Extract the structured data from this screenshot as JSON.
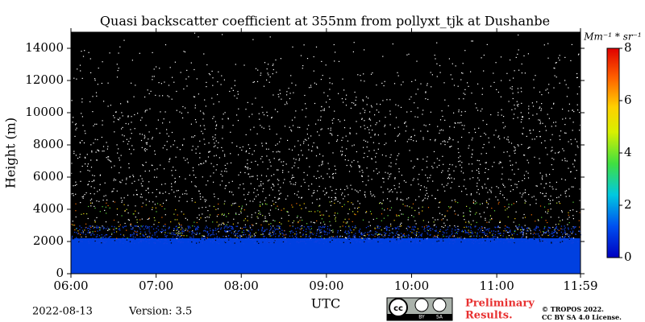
{
  "chart_data": {
    "type": "heatmap",
    "title": "Quasi backscatter coefficient at 355nm from pollyxt_tjk at Dushanbe",
    "xlabel": "UTC",
    "ylabel": "Height (m)",
    "xlim": [
      6,
      11.9833
    ],
    "xticks": [
      {
        "value": 6,
        "label": "06:00"
      },
      {
        "value": 7,
        "label": "07:00"
      },
      {
        "value": 8,
        "label": "08:00"
      },
      {
        "value": 9,
        "label": "09:00"
      },
      {
        "value": 10,
        "label": "10:00"
      },
      {
        "value": 11,
        "label": "11:00"
      },
      {
        "value": 11.9833,
        "label": "11:59"
      }
    ],
    "ylim": [
      0,
      15000
    ],
    "yticks": [
      0,
      2000,
      4000,
      6000,
      8000,
      10000,
      12000,
      14000
    ],
    "colorbar": {
      "label": "Mm⁻¹ * sr⁻¹",
      "clim": [
        0,
        8
      ],
      "ticks": [
        0,
        2,
        4,
        6,
        8
      ]
    }
  },
  "footer": {
    "date": "2022-08-13",
    "version": "Version: 3.5",
    "license_badge": [
      "cc",
      "BY",
      "SA"
    ],
    "notice": [
      "Preliminary",
      "Results."
    ],
    "copyright": [
      "© TROPOS 2022.",
      "CC BY SA 4.0 License."
    ]
  }
}
